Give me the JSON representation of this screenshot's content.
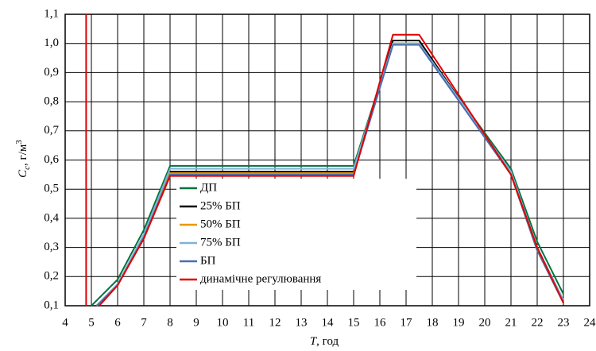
{
  "chart_data": {
    "type": "line",
    "xlabel": {
      "symbol": "T",
      "unit": ", год"
    },
    "ylabel": {
      "symbol": "C",
      "subscript": "с",
      "unit": ", г/м",
      "superscript": "3"
    },
    "xlim": [
      4,
      24
    ],
    "xticks": [
      4,
      5,
      6,
      7,
      8,
      9,
      10,
      11,
      12,
      13,
      14,
      15,
      16,
      17,
      18,
      19,
      20,
      21,
      22,
      23,
      24
    ],
    "ylim": [
      0.1,
      1.1
    ],
    "yticks": [
      {
        "value": 0.1,
        "label": "0,1"
      },
      {
        "value": 0.2,
        "label": "0,2"
      },
      {
        "value": 0.3,
        "label": "0,3"
      },
      {
        "value": 0.4,
        "label": "0,4"
      },
      {
        "value": 0.5,
        "label": "0,5"
      },
      {
        "value": 0.6,
        "label": "0,6"
      },
      {
        "value": 0.7,
        "label": "0,7"
      },
      {
        "value": 0.8,
        "label": "0,8"
      },
      {
        "value": 0.9,
        "label": "0,9"
      },
      {
        "value": 1.0,
        "label": "1,0"
      },
      {
        "value": 1.1,
        "label": "1,1"
      }
    ],
    "grid": true,
    "series": [
      {
        "name": "ДП",
        "color": "#00733c",
        "x": [
          5,
          6,
          7,
          8,
          15,
          16.5,
          17.5,
          21,
          22,
          23
        ],
        "values": [
          0.1,
          0.19,
          0.36,
          0.58,
          0.58,
          1.0,
          1.0,
          0.57,
          0.32,
          0.14
        ]
      },
      {
        "name": "25%  БП",
        "color": "#000000",
        "x": [
          5.2,
          6,
          7,
          8,
          15,
          16.5,
          17.5,
          21,
          22,
          23
        ],
        "values": [
          0.1,
          0.17,
          0.34,
          0.56,
          0.56,
          1.01,
          1.01,
          0.55,
          0.29,
          0.11
        ]
      },
      {
        "name": "50% БП",
        "color": "#e69a00",
        "x": [
          5.2,
          6,
          7,
          8,
          15,
          16.5,
          17.5,
          21,
          22,
          23
        ],
        "values": [
          0.1,
          0.17,
          0.34,
          0.555,
          0.555,
          1.0,
          1.0,
          0.55,
          0.29,
          0.11
        ]
      },
      {
        "name": "75% БП",
        "color": "#7fb3d9",
        "x": [
          5.2,
          6,
          7,
          8,
          15,
          16.5,
          17.5,
          21,
          22,
          23
        ],
        "values": [
          0.1,
          0.175,
          0.345,
          0.57,
          0.57,
          1.0,
          1.0,
          0.56,
          0.3,
          0.12
        ]
      },
      {
        "name": " БП",
        "color": "#4a6fb0",
        "x": [
          5.2,
          6,
          7,
          8,
          15,
          16.5,
          17.5,
          21,
          22,
          23
        ],
        "values": [
          0.1,
          0.17,
          0.335,
          0.55,
          0.55,
          0.995,
          0.995,
          0.55,
          0.29,
          0.11
        ]
      },
      {
        "name": "динамічне регулювання",
        "color": "#e00000",
        "x": [
          4.8,
          4.8,
          5,
          5.3,
          6,
          7,
          8,
          15,
          16.5,
          17.5,
          21,
          22,
          23
        ],
        "values": [
          1.1,
          0.1,
          null,
          0.1,
          0.17,
          0.33,
          0.545,
          0.545,
          1.03,
          1.03,
          0.55,
          0.3,
          0.11
        ]
      }
    ]
  }
}
